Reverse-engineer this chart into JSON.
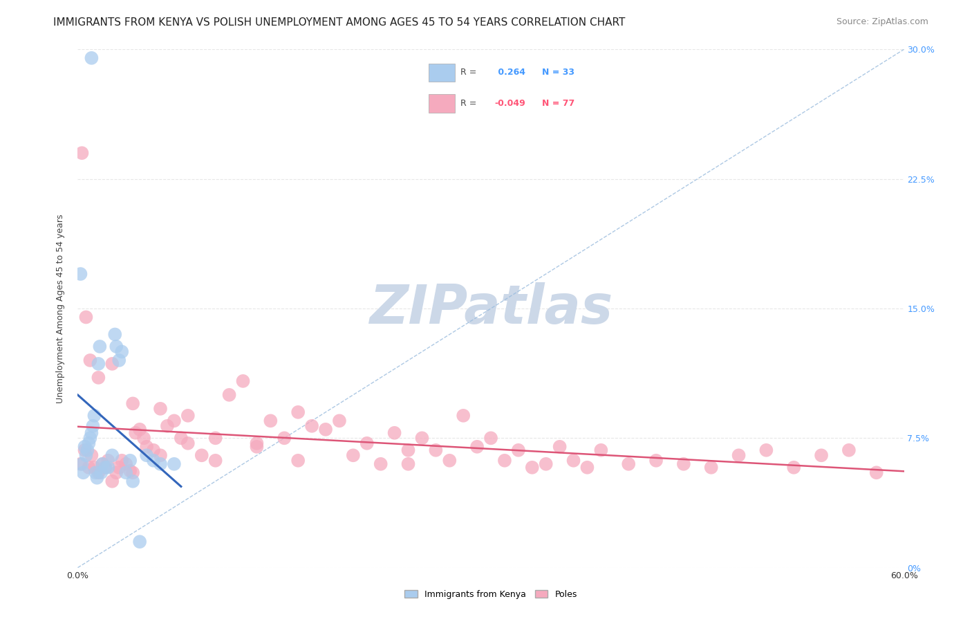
{
  "title": "IMMIGRANTS FROM KENYA VS POLISH UNEMPLOYMENT AMONG AGES 45 TO 54 YEARS CORRELATION CHART",
  "source": "Source: ZipAtlas.com",
  "ylabel": "Unemployment Among Ages 45 to 54 years",
  "series1_R": 0.264,
  "series1_N": 33,
  "series2_R": -0.049,
  "series2_N": 77,
  "blue_color": "#aaccee",
  "pink_color": "#f5aabe",
  "blue_line_color": "#3366bb",
  "pink_line_color": "#dd5577",
  "diagonal_color": "#99bbdd",
  "watermark_color": "#ccd8e8",
  "blue_points_x": [
    0.01,
    0.002,
    0.003,
    0.004,
    0.005,
    0.006,
    0.007,
    0.008,
    0.009,
    0.01,
    0.011,
    0.012,
    0.013,
    0.014,
    0.015,
    0.016,
    0.017,
    0.018,
    0.02,
    0.022,
    0.025,
    0.027,
    0.028,
    0.03,
    0.032,
    0.035,
    0.038,
    0.04,
    0.045,
    0.05,
    0.055,
    0.06,
    0.07
  ],
  "blue_points_y": [
    0.295,
    0.17,
    0.06,
    0.055,
    0.07,
    0.065,
    0.068,
    0.072,
    0.075,
    0.078,
    0.082,
    0.088,
    0.055,
    0.052,
    0.118,
    0.128,
    0.055,
    0.06,
    0.058,
    0.058,
    0.065,
    0.135,
    0.128,
    0.12,
    0.125,
    0.055,
    0.062,
    0.05,
    0.015,
    0.065,
    0.062,
    0.06,
    0.06
  ],
  "pink_points_x": [
    0.002,
    0.005,
    0.008,
    0.01,
    0.012,
    0.015,
    0.018,
    0.02,
    0.022,
    0.025,
    0.028,
    0.03,
    0.032,
    0.035,
    0.038,
    0.04,
    0.042,
    0.045,
    0.048,
    0.05,
    0.055,
    0.06,
    0.065,
    0.07,
    0.075,
    0.08,
    0.09,
    0.1,
    0.11,
    0.12,
    0.13,
    0.14,
    0.15,
    0.16,
    0.17,
    0.18,
    0.19,
    0.2,
    0.21,
    0.22,
    0.23,
    0.24,
    0.25,
    0.26,
    0.27,
    0.28,
    0.29,
    0.3,
    0.31,
    0.32,
    0.33,
    0.34,
    0.35,
    0.36,
    0.37,
    0.38,
    0.4,
    0.42,
    0.44,
    0.46,
    0.48,
    0.5,
    0.52,
    0.54,
    0.56,
    0.58,
    0.003,
    0.006,
    0.009,
    0.015,
    0.025,
    0.04,
    0.06,
    0.08,
    0.1,
    0.13,
    0.16,
    0.24
  ],
  "pink_points_y": [
    0.06,
    0.068,
    0.058,
    0.065,
    0.058,
    0.055,
    0.06,
    0.058,
    0.062,
    0.05,
    0.055,
    0.058,
    0.062,
    0.06,
    0.056,
    0.055,
    0.078,
    0.08,
    0.075,
    0.07,
    0.068,
    0.065,
    0.082,
    0.085,
    0.075,
    0.072,
    0.065,
    0.062,
    0.1,
    0.108,
    0.07,
    0.085,
    0.075,
    0.09,
    0.082,
    0.08,
    0.085,
    0.065,
    0.072,
    0.06,
    0.078,
    0.068,
    0.075,
    0.068,
    0.062,
    0.088,
    0.07,
    0.075,
    0.062,
    0.068,
    0.058,
    0.06,
    0.07,
    0.062,
    0.058,
    0.068,
    0.06,
    0.062,
    0.06,
    0.058,
    0.065,
    0.068,
    0.058,
    0.065,
    0.068,
    0.055,
    0.24,
    0.145,
    0.12,
    0.11,
    0.118,
    0.095,
    0.092,
    0.088,
    0.075,
    0.072,
    0.062,
    0.06
  ],
  "xlim": [
    0.0,
    0.6
  ],
  "ylim": [
    0.0,
    0.3
  ],
  "yticks": [
    0.0,
    0.075,
    0.15,
    0.225,
    0.3
  ],
  "ytick_labels_right": [
    "0%",
    "7.5%",
    "15.0%",
    "22.5%",
    "30.0%"
  ],
  "title_fontsize": 11,
  "source_fontsize": 9,
  "axis_label_fontsize": 9,
  "tick_fontsize": 9,
  "legend_fontsize": 9,
  "background_color": "#ffffff",
  "grid_color": "#dddddd"
}
